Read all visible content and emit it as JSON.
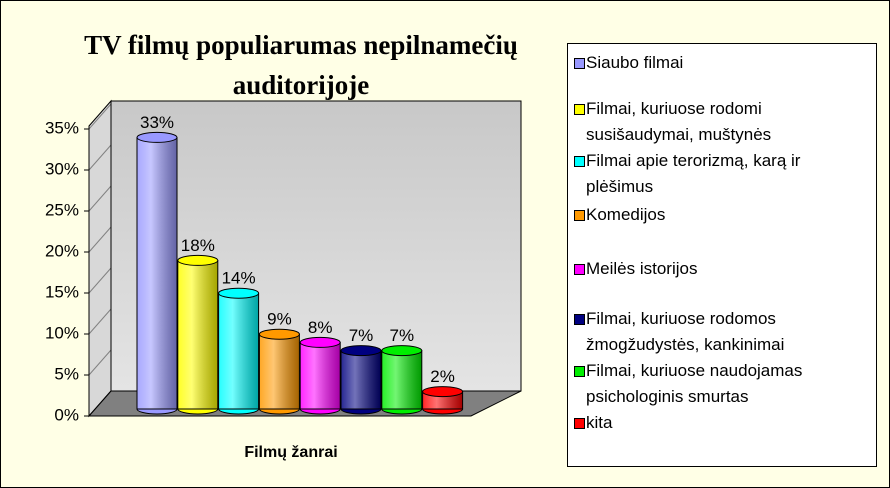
{
  "chart_data": {
    "type": "bar",
    "title": "TV filmų populiarumas nepilnamečių auditorijoje",
    "x_label": "Filmų žanrai",
    "ylim": [
      0,
      35
    ],
    "yticks": [
      {
        "value": 0,
        "label": "0%"
      },
      {
        "value": 5,
        "label": "5%"
      },
      {
        "value": 10,
        "label": "10%"
      },
      {
        "value": 15,
        "label": "15%"
      },
      {
        "value": 20,
        "label": "20%"
      },
      {
        "value": 25,
        "label": "25%"
      },
      {
        "value": 30,
        "label": "30%"
      },
      {
        "value": 35,
        "label": "35%"
      }
    ],
    "series": [
      {
        "name": "Siaubo filmai",
        "color": "#9999ff",
        "values": [
          33
        ],
        "value_labels": [
          "33%"
        ]
      },
      {
        "name": "Filmai, kuriuose rodomi susišaudymai, muštynės",
        "color": "#ffff00",
        "values": [
          18
        ],
        "value_labels": [
          "18%"
        ]
      },
      {
        "name": "Filmai apie terorizmą, karą ir plėšimus",
        "color": "#00ffff",
        "values": [
          14
        ],
        "value_labels": [
          "14%"
        ]
      },
      {
        "name": "Komedijos",
        "color": "#ff9900",
        "values": [
          9
        ],
        "value_labels": [
          "9%"
        ]
      },
      {
        "name": "Meilės istorijos",
        "color": "#ff00ff",
        "values": [
          8
        ],
        "value_labels": [
          "8%"
        ]
      },
      {
        "name": "Filmai, kuriuose rodomos žmogžudystės, kankinimai",
        "color": "#000080",
        "values": [
          7
        ],
        "value_labels": [
          "7%"
        ]
      },
      {
        "name": "Filmai, kuriuose naudojamas psichologinis smurtas",
        "color": "#00ee00",
        "values": [
          7
        ],
        "value_labels": [
          "7%"
        ]
      },
      {
        "name": "kita",
        "color": "#ff0000",
        "values": [
          2
        ],
        "value_labels": [
          "2%"
        ]
      }
    ]
  }
}
